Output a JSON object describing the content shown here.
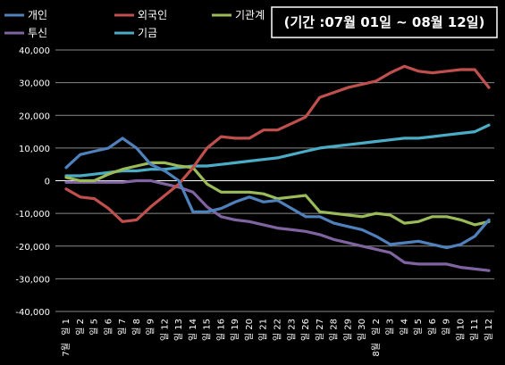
{
  "chart_data": {
    "type": "line",
    "title": "(기간 :07월 01일 ~ 08월 12일)",
    "ylim": [
      -40000,
      40000
    ],
    "y_ticks": [
      "40,000",
      "30,000",
      "20,000",
      "10,000",
      "0",
      "-10,000",
      "-20,000",
      "-30,000",
      "-40,000"
    ],
    "y_tick_values": [
      40000,
      30000,
      20000,
      10000,
      0,
      -10000,
      -20000,
      -30000,
      -40000
    ],
    "grid": "horizontal",
    "legend_position": "top",
    "x": [
      "7월 1일",
      "2",
      "5",
      "6",
      "7",
      "8",
      "9",
      "12",
      "13",
      "14",
      "15",
      "16",
      "19",
      "20",
      "21",
      "22",
      "23",
      "26",
      "27",
      "28",
      "29",
      "30",
      "8월 2일",
      "3",
      "4",
      "5",
      "6",
      "9",
      "10",
      "11",
      "12"
    ],
    "x_tick_labels": [
      "일 1",
      "일 2",
      "일 5",
      "일 6",
      "일 7",
      "일 8",
      "일 9",
      "일 12",
      "일 13",
      "일 14",
      "일 15",
      "일 16",
      "일 19",
      "일 20",
      "일 21",
      "일 22",
      "일 23",
      "일 26",
      "일 27",
      "일 28",
      "일 29",
      "일 30",
      "일 2",
      "일 3",
      "일 4",
      "일 5",
      "일 6",
      "일 9",
      "일 10",
      "일 11",
      "일 12"
    ],
    "month_labels": [
      {
        "index": 0,
        "text": "7월"
      },
      {
        "index": 22,
        "text": "8월"
      }
    ],
    "series": [
      {
        "name": "개인",
        "color": "#4F81BD",
        "values": [
          4000,
          8000,
          9000,
          10000,
          13000,
          10000,
          5000,
          3000,
          0,
          -9500,
          -9500,
          -8500,
          -6500,
          -5000,
          -6500,
          -6000,
          -8500,
          -11000,
          -11000,
          -13000,
          -14000,
          -15000,
          -17000,
          -19500,
          -19000,
          -18500,
          -19500,
          -20500,
          -19500,
          -17000,
          -12000
        ]
      },
      {
        "name": "외국인",
        "color": "#C0504D",
        "values": [
          -2500,
          -5000,
          -5500,
          -8500,
          -12500,
          -12000,
          -8000,
          -4500,
          -1000,
          4000,
          10000,
          13500,
          13000,
          13000,
          15500,
          15500,
          17500,
          19500,
          25500,
          27000,
          28500,
          29500,
          30500,
          33000,
          35000,
          33500,
          33000,
          33500,
          34000,
          34000,
          28500
        ]
      },
      {
        "name": "기관계",
        "color": "#9BBB59",
        "values": [
          1000,
          0,
          0,
          2000,
          3500,
          4500,
          5500,
          5500,
          4500,
          4000,
          -1000,
          -3500,
          -3500,
          -3500,
          -4000,
          -5500,
          -5000,
          -4500,
          -9500,
          -10000,
          -10500,
          -11000,
          -10000,
          -10500,
          -13000,
          -12500,
          -11000,
          -11000,
          -12000,
          -13500,
          -12500
        ]
      },
      {
        "name": "투신",
        "color": "#8064A2",
        "values": [
          -500,
          -500,
          -500,
          -500,
          -500,
          0,
          0,
          -1000,
          -2000,
          -3500,
          -8000,
          -11000,
          -12000,
          -12500,
          -13500,
          -14500,
          -15000,
          -15500,
          -16500,
          -18000,
          -19000,
          -20000,
          -21000,
          -22000,
          -25000,
          -25500,
          -25500,
          -25500,
          -26500,
          -27000,
          -27500
        ]
      },
      {
        "name": "기금",
        "color": "#4BACC6",
        "values": [
          1500,
          1500,
          2000,
          2500,
          3000,
          3000,
          3500,
          3500,
          4000,
          4500,
          4500,
          5000,
          5500,
          6000,
          6500,
          7000,
          8000,
          9000,
          10000,
          10500,
          11000,
          11500,
          12000,
          12500,
          13000,
          13000,
          13500,
          14000,
          14500,
          15000,
          17000
        ]
      }
    ]
  }
}
